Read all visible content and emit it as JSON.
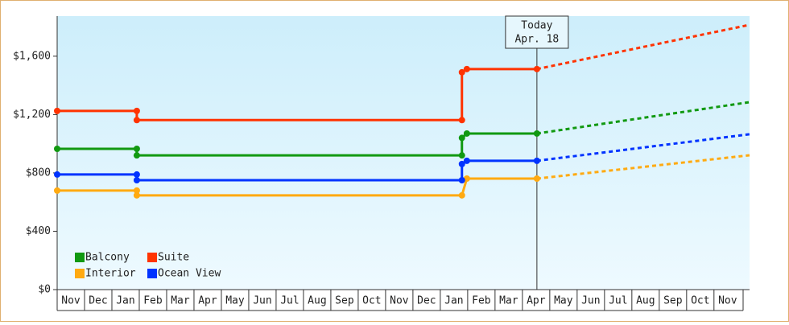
{
  "chart_data": {
    "type": "step-line",
    "annotation": {
      "x": 17.53,
      "title": "Today",
      "label": "Apr. 18"
    },
    "xlim": [
      0,
      25.3
    ],
    "xticks": [
      {
        "value": 0.5,
        "label": "Nov"
      },
      {
        "value": 1.5,
        "label": "Dec"
      },
      {
        "value": 2.5,
        "label": "Jan"
      },
      {
        "value": 3.5,
        "label": "Feb"
      },
      {
        "value": 4.5,
        "label": "Mar"
      },
      {
        "value": 5.5,
        "label": "Apr"
      },
      {
        "value": 6.5,
        "label": "May"
      },
      {
        "value": 7.5,
        "label": "Jun"
      },
      {
        "value": 8.5,
        "label": "Jul"
      },
      {
        "value": 9.5,
        "label": "Aug"
      },
      {
        "value": 10.5,
        "label": "Sep"
      },
      {
        "value": 11.5,
        "label": "Oct"
      },
      {
        "value": 12.5,
        "label": "Nov"
      },
      {
        "value": 13.5,
        "label": "Dec"
      },
      {
        "value": 14.5,
        "label": "Jan"
      },
      {
        "value": 15.5,
        "label": "Feb"
      },
      {
        "value": 16.5,
        "label": "Mar"
      },
      {
        "value": 17.5,
        "label": "Apr"
      },
      {
        "value": 18.5,
        "label": "May"
      },
      {
        "value": 19.5,
        "label": "Jun"
      },
      {
        "value": 20.5,
        "label": "Jul"
      },
      {
        "value": 21.5,
        "label": "Aug"
      },
      {
        "value": 22.5,
        "label": "Sep"
      },
      {
        "value": 23.5,
        "label": "Oct"
      },
      {
        "value": 24.5,
        "label": "Nov"
      }
    ],
    "ylim": [
      0,
      1875
    ],
    "yticks": [
      {
        "value": 0,
        "label": "$0"
      },
      {
        "value": 400,
        "label": "$400"
      },
      {
        "value": 800,
        "label": "$800"
      },
      {
        "value": 1200,
        "label": "$1,200"
      },
      {
        "value": 1600,
        "label": "$1,600"
      }
    ],
    "legend": "lower left",
    "series": [
      {
        "name": "Balcony",
        "color": "#119911",
        "x": [
          0,
          2.91,
          2.91,
          14.79,
          14.79,
          14.97,
          17.53
        ],
        "values": [
          965,
          965,
          920,
          920,
          1040,
          1070,
          1070
        ],
        "projection": {
          "x": [
            17.53,
            25.3
          ],
          "values": [
            1070,
            1285
          ]
        }
      },
      {
        "name": "Suite",
        "color": "#ff3300",
        "x": [
          0,
          2.91,
          2.91,
          14.79,
          14.79,
          14.97,
          17.53
        ],
        "values": [
          1225,
          1225,
          1162,
          1162,
          1490,
          1512,
          1512
        ],
        "projection": {
          "x": [
            17.53,
            25.3
          ],
          "values": [
            1512,
            1815
          ]
        }
      },
      {
        "name": "Interior",
        "color": "#ffaa11",
        "x": [
          0,
          2.91,
          2.91,
          14.79,
          14.97,
          17.53
        ],
        "values": [
          679,
          679,
          646,
          646,
          761,
          761
        ],
        "projection": {
          "x": [
            17.53,
            25.3
          ],
          "values": [
            761,
            921
          ]
        }
      },
      {
        "name": "Ocean View",
        "color": "#0033ff",
        "x": [
          0,
          2.91,
          2.91,
          14.79,
          14.79,
          14.97,
          17.53
        ],
        "values": [
          789,
          789,
          750,
          750,
          861,
          883,
          883
        ],
        "projection": {
          "x": [
            17.53,
            25.3
          ],
          "values": [
            883,
            1065
          ]
        }
      }
    ]
  }
}
